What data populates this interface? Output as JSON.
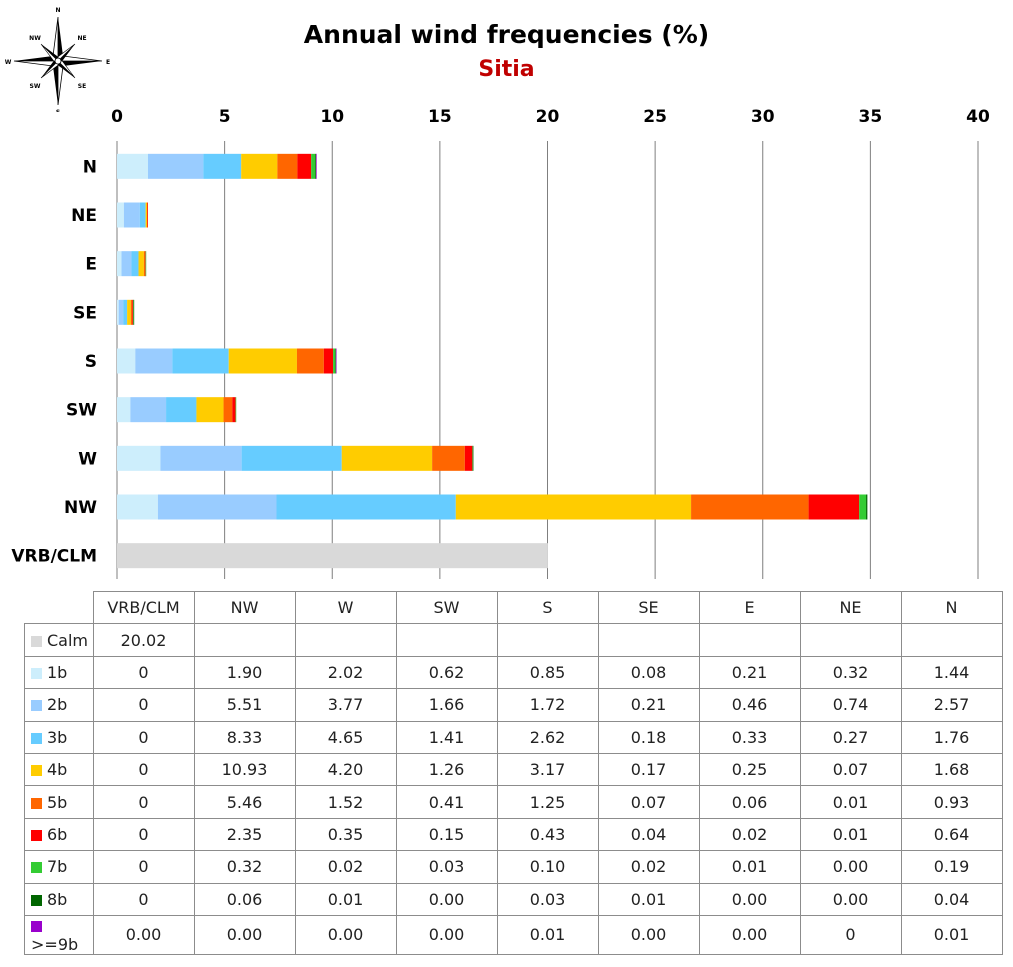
{
  "chart_data": {
    "type": "bar",
    "orientation": "horizontal",
    "stacked": true,
    "title": "Annual wind frequencies (%)",
    "subtitle": "Sitia",
    "xlim": [
      0,
      40
    ],
    "x_ticks": [
      "0",
      "5",
      "10",
      "15",
      "20",
      "25",
      "30",
      "35",
      "40"
    ],
    "grid": true,
    "legend": "table-below",
    "categories": [
      "N",
      "NE",
      "E",
      "SE",
      "S",
      "SW",
      "W",
      "NW",
      "VRB/CLM"
    ],
    "table_columns": [
      "VRB/CLM",
      "NW",
      "W",
      "SW",
      "S",
      "SE",
      "E",
      "NE",
      "N"
    ],
    "series": [
      {
        "name": "Calm",
        "color": "#d9d9d9",
        "values": [
          null,
          null,
          null,
          null,
          null,
          null,
          null,
          null,
          20.02
        ],
        "cells": [
          "20.02",
          "",
          "",
          "",
          "",
          "",
          "",
          "",
          ""
        ]
      },
      {
        "name": "1b",
        "color": "#cdeefc",
        "values": [
          1.44,
          0.32,
          0.21,
          0.08,
          0.85,
          0.62,
          2.02,
          1.9,
          0
        ],
        "cells": [
          "0",
          "1.90",
          "2.02",
          "0.62",
          "0.85",
          "0.08",
          "0.21",
          "0.32",
          "1.44"
        ]
      },
      {
        "name": "2b",
        "color": "#99ccff",
        "values": [
          2.57,
          0.74,
          0.46,
          0.21,
          1.72,
          1.66,
          3.77,
          5.51,
          0
        ],
        "cells": [
          "0",
          "5.51",
          "3.77",
          "1.66",
          "1.72",
          "0.21",
          "0.46",
          "0.74",
          "2.57"
        ]
      },
      {
        "name": "3b",
        "color": "#66ccff",
        "values": [
          1.76,
          0.27,
          0.33,
          0.18,
          2.62,
          1.41,
          4.65,
          8.33,
          0
        ],
        "cells": [
          "0",
          "8.33",
          "4.65",
          "1.41",
          "2.62",
          "0.18",
          "0.33",
          "0.27",
          "1.76"
        ]
      },
      {
        "name": "4b",
        "color": "#ffcc00",
        "values": [
          1.68,
          0.07,
          0.25,
          0.17,
          3.17,
          1.26,
          4.2,
          10.93,
          0
        ],
        "cells": [
          "0",
          "10.93",
          "4.20",
          "1.26",
          "3.17",
          "0.17",
          "0.25",
          "0.07",
          "1.68"
        ]
      },
      {
        "name": "5b",
        "color": "#ff6600",
        "values": [
          0.93,
          0.01,
          0.06,
          0.07,
          1.25,
          0.41,
          1.52,
          5.46,
          0
        ],
        "cells": [
          "0",
          "5.46",
          "1.52",
          "0.41",
          "1.25",
          "0.07",
          "0.06",
          "0.01",
          "0.93"
        ]
      },
      {
        "name": "6b",
        "color": "#ff0000",
        "values": [
          0.64,
          0.01,
          0.02,
          0.04,
          0.43,
          0.15,
          0.35,
          2.35,
          0
        ],
        "cells": [
          "0",
          "2.35",
          "0.35",
          "0.15",
          "0.43",
          "0.04",
          "0.02",
          "0.01",
          "0.64"
        ]
      },
      {
        "name": "7b",
        "color": "#33cc33",
        "values": [
          0.19,
          0.0,
          0.01,
          0.02,
          0.1,
          0.03,
          0.02,
          0.32,
          0
        ],
        "cells": [
          "0",
          "0.32",
          "0.02",
          "0.03",
          "0.10",
          "0.02",
          "0.01",
          "0.00",
          "0.19"
        ]
      },
      {
        "name": "8b",
        "color": "#006600",
        "values": [
          0.04,
          0.0,
          0.0,
          0.01,
          0.03,
          0.0,
          0.01,
          0.06,
          0
        ],
        "cells": [
          "0",
          "0.06",
          "0.01",
          "0.00",
          "0.03",
          "0.01",
          "0.00",
          "0.00",
          "0.04"
        ]
      },
      {
        "name": ">=9b",
        "color": "#9900cc",
        "values": [
          0.01,
          0,
          0.0,
          0.0,
          0.01,
          0.0,
          0.0,
          0.0,
          0.0
        ],
        "cells": [
          "0.00",
          "0.00",
          "0.00",
          "0.00",
          "0.01",
          "0.00",
          "0.00",
          "0",
          "0.01"
        ]
      }
    ]
  },
  "compass": {
    "labels": [
      "N",
      "NE",
      "E",
      "SE",
      "S",
      "SW",
      "W",
      "NW"
    ]
  },
  "colors": {
    "subtitle": "#c00000",
    "grid": "#7f7f7f"
  }
}
